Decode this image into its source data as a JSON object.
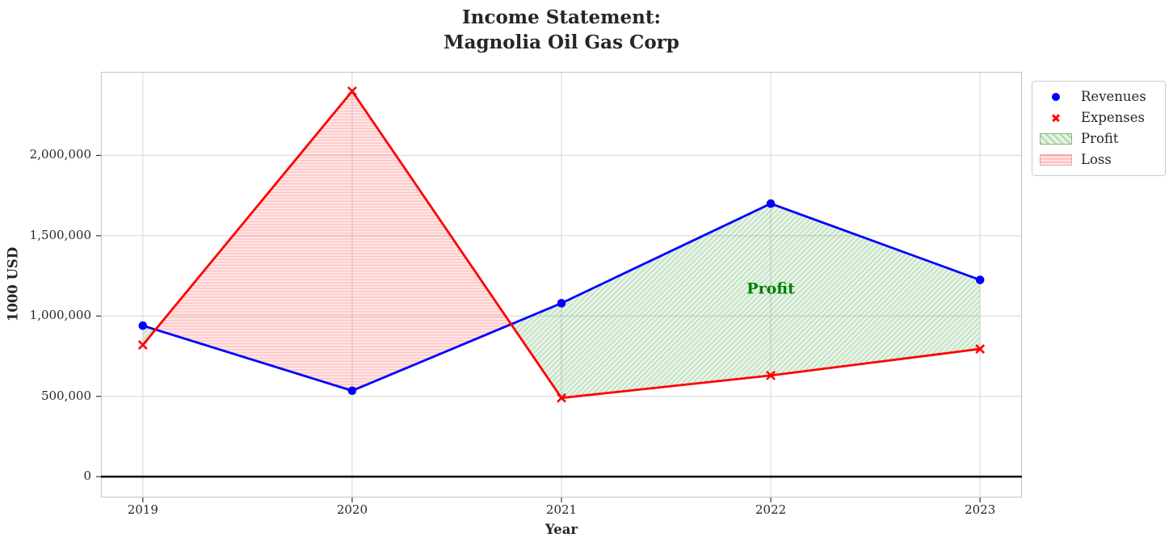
{
  "figure": {
    "title_line1": "Income Statement:",
    "title_line2": "Magnolia Oil Gas Corp",
    "xlabel": "Year",
    "ylabel": "1000 USD"
  },
  "legend": {
    "items": [
      {
        "label": "Revenues",
        "swatch": "blue-line-circle-marker"
      },
      {
        "label": "Expenses",
        "swatch": "red-line-x-marker"
      },
      {
        "label": "Profit",
        "swatch": "green-diagonal-hatch-patch"
      },
      {
        "label": "Loss",
        "swatch": "pink-horizontal-hatch-patch"
      }
    ]
  },
  "chart_data": {
    "type": "line",
    "title": "Income Statement:\nMagnolia Oil Gas Corp",
    "xlabel": "Year",
    "ylabel": "1000 USD",
    "x": [
      2019,
      2020,
      2021,
      2022,
      2023
    ],
    "series": [
      {
        "name": "Revenues",
        "color": "#0000ff",
        "marker": "circle",
        "values": [
          940000,
          535000,
          1080000,
          1700000,
          1225000
        ]
      },
      {
        "name": "Expenses",
        "color": "#ff0000",
        "marker": "x",
        "values": [
          820000,
          2400000,
          490000,
          630000,
          795000
        ]
      }
    ],
    "fills": [
      {
        "name": "Profit",
        "condition": "revenues > expenses",
        "style": "green diagonal hatch"
      },
      {
        "name": "Loss",
        "condition": "expenses > revenues",
        "style": "pink horizontal hatch"
      }
    ],
    "annotation": {
      "text": "Profit",
      "x": 2022,
      "y": 1170000,
      "color": "#008000"
    },
    "zero_line": true,
    "grid": true,
    "legend_position": "upper right, outside plot",
    "xlim": [
      2018.8,
      2023.2
    ],
    "ylim": [
      -130000,
      2520000
    ],
    "xticks": [
      2019,
      2020,
      2021,
      2022,
      2023
    ],
    "xtick_labels": [
      "2019",
      "2020",
      "2021",
      "2022",
      "2023"
    ],
    "yticks": [
      0,
      500000,
      1000000,
      1500000,
      2000000
    ],
    "ytick_labels": [
      "0",
      "500,000",
      "1,000,000",
      "1,500,000",
      "2,000,000"
    ]
  }
}
